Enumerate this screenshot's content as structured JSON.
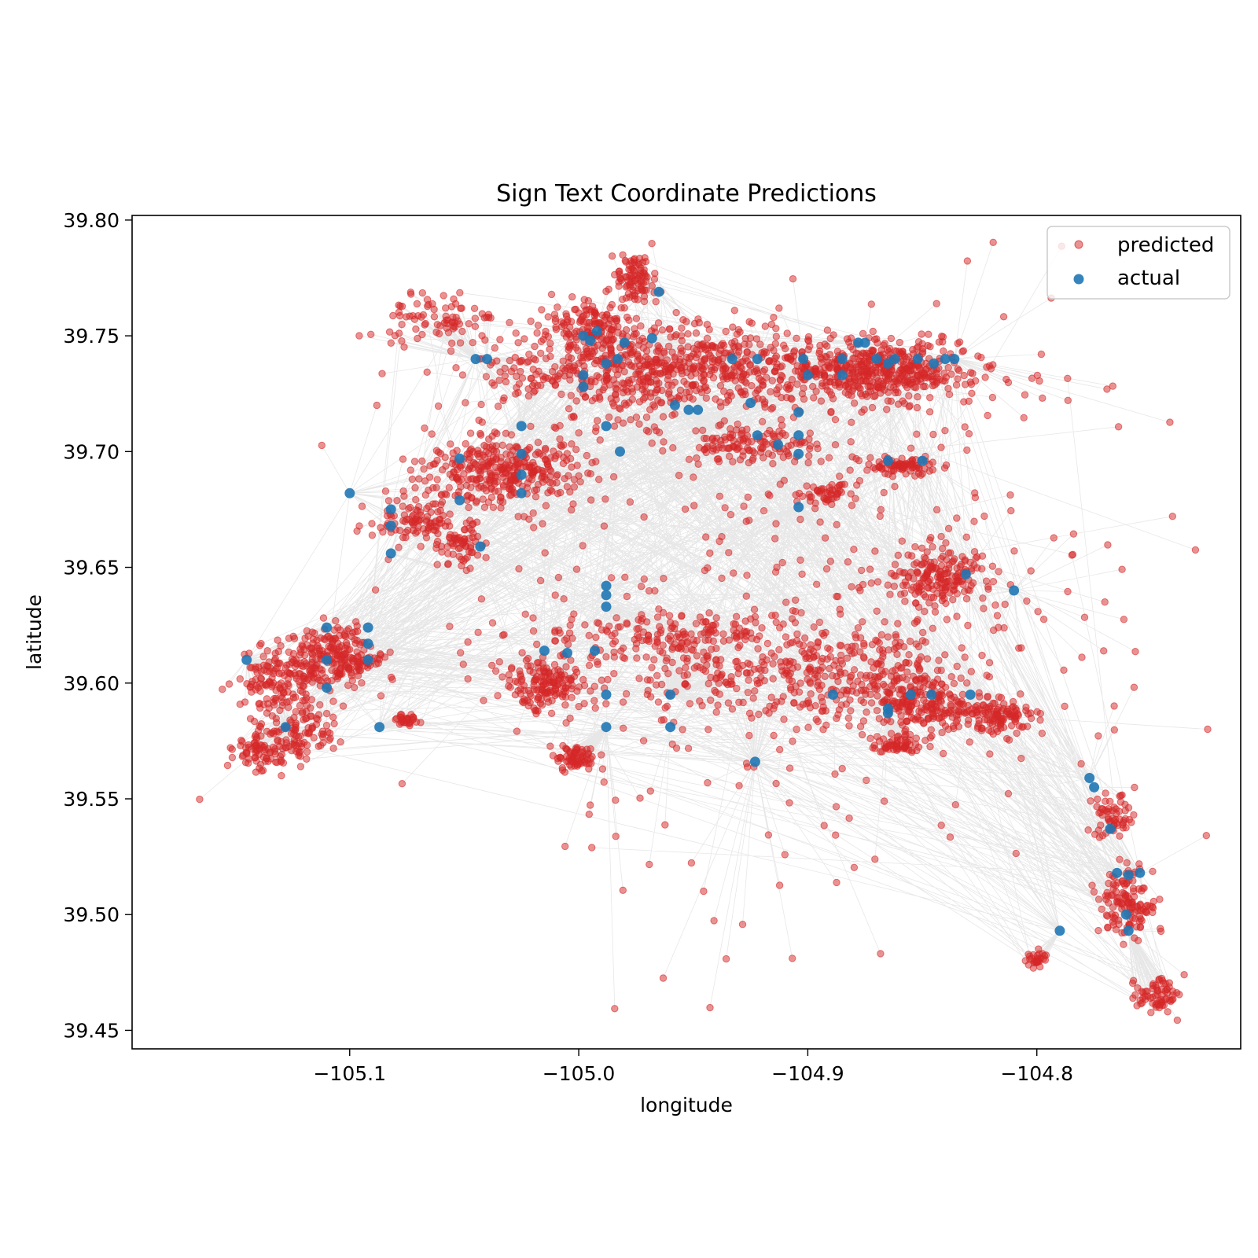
{
  "chart_data": {
    "type": "scatter",
    "title": "Sign Text Coordinate Predictions",
    "xlabel": "longitude",
    "ylabel": "latitude",
    "xlim": [
      -105.195,
      -104.711
    ],
    "ylim": [
      39.442,
      39.802
    ],
    "xticks": [
      -105.1,
      -105.0,
      -104.9,
      -104.8
    ],
    "xtick_labels": [
      "−105.1",
      "−105.0",
      "−104.9",
      "−104.8"
    ],
    "yticks": [
      39.45,
      39.5,
      39.55,
      39.6,
      39.65,
      39.7,
      39.75,
      39.8
    ],
    "ytick_labels": [
      "39.45",
      "39.50",
      "39.55",
      "39.60",
      "39.65",
      "39.70",
      "39.75",
      "39.80"
    ],
    "grid": false,
    "legend": {
      "placement": "top-right",
      "entries": [
        "predicted",
        "actual"
      ]
    },
    "colors": {
      "predicted": "#d62728",
      "actual": "#1f77b4",
      "connector": "#bbbbbb"
    },
    "series": [
      {
        "name": "actual",
        "points": [
          [
            -105.04,
            39.74
          ],
          [
            -105.045,
            39.74
          ],
          [
            -104.998,
            39.75
          ],
          [
            -104.995,
            39.748
          ],
          [
            -104.992,
            39.752
          ],
          [
            -104.988,
            39.738
          ],
          [
            -104.98,
            39.747
          ],
          [
            -104.983,
            39.74
          ],
          [
            -104.965,
            39.769
          ],
          [
            -104.968,
            39.749
          ],
          [
            -104.998,
            39.728
          ],
          [
            -104.998,
            39.733
          ],
          [
            -104.933,
            39.74
          ],
          [
            -104.922,
            39.74
          ],
          [
            -104.902,
            39.74
          ],
          [
            -104.9,
            39.733
          ],
          [
            -104.885,
            39.74
          ],
          [
            -104.875,
            39.747
          ],
          [
            -104.87,
            39.74
          ],
          [
            -104.865,
            39.738
          ],
          [
            -104.862,
            39.74
          ],
          [
            -104.852,
            39.74
          ],
          [
            -104.845,
            39.738
          ],
          [
            -104.84,
            39.74
          ],
          [
            -104.836,
            39.74
          ],
          [
            -104.885,
            39.733
          ],
          [
            -104.878,
            39.747
          ],
          [
            -104.958,
            39.72
          ],
          [
            -104.952,
            39.718
          ],
          [
            -104.948,
            39.718
          ],
          [
            -104.925,
            39.721
          ],
          [
            -104.922,
            39.707
          ],
          [
            -104.913,
            39.703
          ],
          [
            -104.904,
            39.717
          ],
          [
            -104.904,
            39.707
          ],
          [
            -104.904,
            39.699
          ],
          [
            -104.904,
            39.676
          ],
          [
            -104.865,
            39.696
          ],
          [
            -104.85,
            39.696
          ],
          [
            -104.988,
            39.711
          ],
          [
            -104.982,
            39.7
          ],
          [
            -105.025,
            39.711
          ],
          [
            -105.025,
            39.699
          ],
          [
            -105.025,
            39.69
          ],
          [
            -105.025,
            39.682
          ],
          [
            -105.052,
            39.697
          ],
          [
            -105.052,
            39.679
          ],
          [
            -105.043,
            39.659
          ],
          [
            -105.1,
            39.682
          ],
          [
            -105.082,
            39.675
          ],
          [
            -105.082,
            39.668
          ],
          [
            -105.082,
            39.656
          ],
          [
            -105.11,
            39.624
          ],
          [
            -105.11,
            39.61
          ],
          [
            -105.11,
            39.598
          ],
          [
            -105.092,
            39.624
          ],
          [
            -105.092,
            39.617
          ],
          [
            -105.092,
            39.61
          ],
          [
            -105.145,
            39.61
          ],
          [
            -105.128,
            39.581
          ],
          [
            -105.087,
            39.581
          ],
          [
            -104.988,
            39.642
          ],
          [
            -104.988,
            39.638
          ],
          [
            -104.988,
            39.633
          ],
          [
            -105.015,
            39.614
          ],
          [
            -105.005,
            39.613
          ],
          [
            -104.993,
            39.614
          ],
          [
            -104.988,
            39.595
          ],
          [
            -104.988,
            39.581
          ],
          [
            -104.96,
            39.595
          ],
          [
            -104.96,
            39.581
          ],
          [
            -104.923,
            39.566
          ],
          [
            -104.889,
            39.595
          ],
          [
            -104.865,
            39.589
          ],
          [
            -104.865,
            39.587
          ],
          [
            -104.855,
            39.595
          ],
          [
            -104.846,
            39.595
          ],
          [
            -104.829,
            39.595
          ],
          [
            -104.831,
            39.647
          ],
          [
            -104.81,
            39.64
          ],
          [
            -104.777,
            39.559
          ],
          [
            -104.775,
            39.555
          ],
          [
            -104.768,
            39.537
          ],
          [
            -104.765,
            39.518
          ],
          [
            -104.76,
            39.517
          ],
          [
            -104.755,
            39.518
          ],
          [
            -104.761,
            39.5
          ],
          [
            -104.76,
            39.493
          ],
          [
            -104.79,
            39.493
          ]
        ]
      },
      {
        "name": "predicted",
        "clusters": [
          {
            "center": [
              -104.972,
              39.735
            ],
            "spread": [
              0.035,
              0.01
            ],
            "n": 600
          },
          {
            "center": [
              -104.995,
              39.755
            ],
            "spread": [
              0.008,
              0.006
            ],
            "n": 120
          },
          {
            "center": [
              -104.975,
              39.775
            ],
            "spread": [
              0.005,
              0.006
            ],
            "n": 90
          },
          {
            "center": [
              -104.885,
              39.735
            ],
            "spread": [
              0.035,
              0.008
            ],
            "n": 400
          },
          {
            "center": [
              -104.865,
              39.735
            ],
            "spread": [
              0.015,
              0.005
            ],
            "n": 200
          },
          {
            "center": [
              -105.06,
              39.757
            ],
            "spread": [
              0.012,
              0.005
            ],
            "n": 80
          },
          {
            "center": [
              -105.035,
              39.692
            ],
            "spread": [
              0.018,
              0.008
            ],
            "n": 350
          },
          {
            "center": [
              -105.07,
              39.67
            ],
            "spread": [
              0.01,
              0.006
            ],
            "n": 100
          },
          {
            "center": [
              -105.052,
              39.66
            ],
            "spread": [
              0.005,
              0.005
            ],
            "n": 60
          },
          {
            "center": [
              -105.13,
              39.602
            ],
            "spread": [
              0.01,
              0.007
            ],
            "n": 150
          },
          {
            "center": [
              -105.105,
              39.612
            ],
            "spread": [
              0.01,
              0.006
            ],
            "n": 220
          },
          {
            "center": [
              -105.125,
              39.578
            ],
            "spread": [
              0.009,
              0.006
            ],
            "n": 120
          },
          {
            "center": [
              -105.14,
              39.57
            ],
            "spread": [
              0.006,
              0.004
            ],
            "n": 60
          },
          {
            "center": [
              -105.015,
              39.6
            ],
            "spread": [
              0.008,
              0.005
            ],
            "n": 150
          },
          {
            "center": [
              -105.0,
              39.568
            ],
            "spread": [
              0.006,
              0.003
            ],
            "n": 70
          },
          {
            "center": [
              -104.958,
              39.62
            ],
            "spread": [
              0.035,
              0.006
            ],
            "n": 200
          },
          {
            "center": [
              -104.92,
              39.6
            ],
            "spread": [
              0.04,
              0.01
            ],
            "n": 220
          },
          {
            "center": [
              -104.87,
              39.605
            ],
            "spread": [
              0.02,
              0.009
            ],
            "n": 180
          },
          {
            "center": [
              -104.85,
              39.59
            ],
            "spread": [
              0.01,
              0.005
            ],
            "n": 150
          },
          {
            "center": [
              -104.818,
              39.586
            ],
            "spread": [
              0.008,
              0.004
            ],
            "n": 120
          },
          {
            "center": [
              -104.86,
              39.573
            ],
            "spread": [
              0.006,
              0.002
            ],
            "n": 60
          },
          {
            "center": [
              -104.845,
              39.645
            ],
            "spread": [
              0.012,
              0.007
            ],
            "n": 180
          },
          {
            "center": [
              -104.858,
              39.694
            ],
            "spread": [
              0.008,
              0.002
            ],
            "n": 80
          },
          {
            "center": [
              -104.893,
              39.682
            ],
            "spread": [
              0.006,
              0.002
            ],
            "n": 50
          },
          {
            "center": [
              -104.925,
              39.703
            ],
            "spread": [
              0.015,
              0.004
            ],
            "n": 120
          },
          {
            "center": [
              -104.767,
              39.543
            ],
            "spread": [
              0.005,
              0.005
            ],
            "n": 60
          },
          {
            "center": [
              -104.76,
              39.505
            ],
            "spread": [
              0.006,
              0.007
            ],
            "n": 130
          },
          {
            "center": [
              -104.748,
              39.466
            ],
            "spread": [
              0.005,
              0.004
            ],
            "n": 70
          },
          {
            "center": [
              -104.8,
              39.481
            ],
            "spread": [
              0.002,
              0.002
            ],
            "n": 30
          },
          {
            "center": [
              -105.075,
              39.584
            ],
            "spread": [
              0.003,
              0.001
            ],
            "n": 30
          },
          {
            "center": [
              -104.9,
              39.64
            ],
            "spread": [
              0.08,
              0.06
            ],
            "n": 400
          }
        ]
      }
    ]
  }
}
